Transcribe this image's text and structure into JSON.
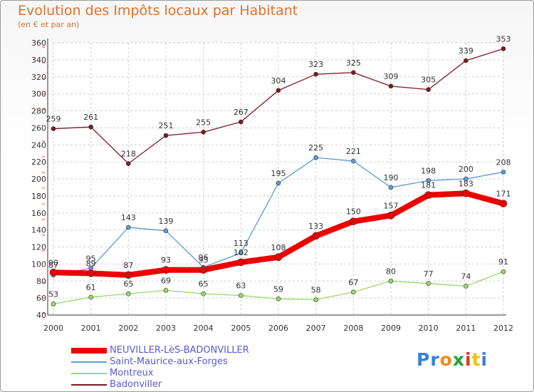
{
  "title": "Evolution des Impôts locaux par Habitant",
  "subtitle": "(en € et par an)",
  "logo": {
    "letters": [
      "P",
      "r",
      "o",
      "x",
      "i",
      "t",
      "i"
    ],
    "colors": [
      "#3a7fd5",
      "#3a7fd5",
      "#f08a1a",
      "#1aa53a",
      "#d83a2a",
      "#f0c01a",
      "#3a7fd5"
    ]
  },
  "chart_data": {
    "type": "line",
    "x": [
      "2000",
      "2001",
      "2002",
      "2003",
      "2004",
      "2005",
      "2006",
      "2007",
      "2008",
      "2009",
      "2010",
      "2011",
      "2012"
    ],
    "ylim": [
      40,
      360
    ],
    "yticks": [
      40,
      60,
      80,
      100,
      120,
      140,
      160,
      180,
      200,
      220,
      240,
      260,
      280,
      300,
      320,
      340,
      360
    ],
    "grid": true,
    "legend_position": "bottom-left",
    "series": [
      {
        "name": "Badonviller",
        "color": "#7a1c24",
        "values": [
          259,
          261,
          218,
          251,
          255,
          267,
          304,
          323,
          325,
          309,
          305,
          339,
          353
        ]
      },
      {
        "name": "Saint-Maurice-aux-Forges",
        "color": "#5b9bd5",
        "values": [
          87,
          95,
          143,
          139,
          96,
          113,
          195,
          225,
          221,
          190,
          198,
          200,
          208
        ]
      },
      {
        "name": "Montreux",
        "color": "#9ad86a",
        "values": [
          53,
          61,
          65,
          69,
          65,
          63,
          59,
          58,
          67,
          80,
          77,
          74,
          91
        ]
      },
      {
        "name": "NEUVILLER-LèS-BADONVILLER",
        "color": "#ee0000",
        "values": [
          90,
          89,
          87,
          93,
          93,
          102,
          108,
          133,
          150,
          157,
          181,
          183,
          171
        ]
      }
    ],
    "legend_order": [
      "NEUVILLER-LèS-BADONVILLER",
      "Saint-Maurice-aux-Forges",
      "Montreux",
      "Badonviller"
    ]
  }
}
